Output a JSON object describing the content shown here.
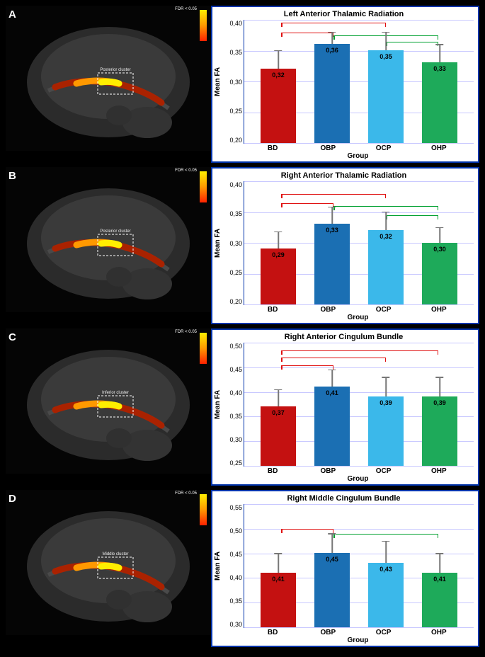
{
  "figure": {
    "panels": [
      {
        "label": "A",
        "chart": {
          "title": "Left Anterior Thalamic Radiation",
          "type": "bar",
          "ylabel": "Mean FA",
          "xlabel": "Group",
          "ylim": [
            0.2,
            0.4
          ],
          "yticks": [
            "0,40",
            "0,35",
            "0,30",
            "0,25",
            "0,20"
          ],
          "categories": [
            "BD",
            "OBP",
            "OCP",
            "OHP"
          ],
          "values": [
            0.32,
            0.36,
            0.35,
            0.33
          ],
          "value_labels": [
            "0,32",
            "0,36",
            "0,35",
            "0,33"
          ],
          "errors": [
            0.03,
            0.02,
            0.03,
            0.03
          ],
          "bar_colors": [
            "#c41111",
            "#1b6fb3",
            "#3bb8ea",
            "#1eaa5a"
          ],
          "background_color": "#ffffff",
          "grid_color": "#c8c8ff",
          "axis_color": "#0033aa",
          "brackets": [
            {
              "from": 0,
              "to": 1,
              "y": 0.38,
              "color": "red"
            },
            {
              "from": 0,
              "to": 2,
              "y": 0.395,
              "color": "red"
            },
            {
              "from": 1,
              "to": 3,
              "y": 0.375,
              "color": "grn"
            },
            {
              "from": 2,
              "to": 3,
              "y": 0.365,
              "color": "grn"
            }
          ]
        },
        "colorbar_label": "FDR < 0.05",
        "brain_region_label": "Posterior cluster"
      },
      {
        "label": "B",
        "chart": {
          "title": "Right Anterior Thalamic Radiation",
          "type": "bar",
          "ylabel": "Mean FA",
          "xlabel": "Group",
          "ylim": [
            0.2,
            0.4
          ],
          "yticks": [
            "0,40",
            "0,35",
            "0,30",
            "0,25",
            "0,20"
          ],
          "categories": [
            "BD",
            "OBP",
            "OCP",
            "OHP"
          ],
          "values": [
            0.29,
            0.33,
            0.32,
            0.3
          ],
          "value_labels": [
            "0,29",
            "0,33",
            "0,32",
            "0,30"
          ],
          "errors": [
            0.028,
            0.028,
            0.03,
            0.025
          ],
          "bar_colors": [
            "#c41111",
            "#1b6fb3",
            "#3bb8ea",
            "#1eaa5a"
          ],
          "background_color": "#ffffff",
          "grid_color": "#c8c8ff",
          "axis_color": "#0033aa",
          "brackets": [
            {
              "from": 0,
              "to": 1,
              "y": 0.365,
              "color": "red"
            },
            {
              "from": 0,
              "to": 2,
              "y": 0.38,
              "color": "red"
            },
            {
              "from": 1,
              "to": 3,
              "y": 0.36,
              "color": "grn"
            },
            {
              "from": 2,
              "to": 3,
              "y": 0.345,
              "color": "grn"
            }
          ]
        },
        "colorbar_label": "FDR < 0.05",
        "brain_region_label": "Posterior cluster"
      },
      {
        "label": "C",
        "chart": {
          "title": "Right Anterior Cingulum Bundle",
          "type": "bar",
          "ylabel": "Mean FA",
          "xlabel": "Group",
          "ylim": [
            0.25,
            0.5
          ],
          "yticks": [
            "0,50",
            "0,45",
            "0,40",
            "0,35",
            "0,30",
            "0,25"
          ],
          "categories": [
            "BD",
            "OBP",
            "OCP",
            "OHP"
          ],
          "values": [
            0.37,
            0.41,
            0.39,
            0.39
          ],
          "value_labels": [
            "0,37",
            "0,41",
            "0,39",
            "0,39"
          ],
          "errors": [
            0.035,
            0.035,
            0.04,
            0.04
          ],
          "bar_colors": [
            "#c41111",
            "#1b6fb3",
            "#3bb8ea",
            "#1eaa5a"
          ],
          "background_color": "#ffffff",
          "grid_color": "#c8c8ff",
          "axis_color": "#0033aa",
          "brackets": [
            {
              "from": 0,
              "to": 1,
              "y": 0.455,
              "color": "red"
            },
            {
              "from": 0,
              "to": 2,
              "y": 0.47,
              "color": "red"
            },
            {
              "from": 0,
              "to": 3,
              "y": 0.485,
              "color": "red"
            }
          ]
        },
        "colorbar_label": "FDR < 0.05",
        "brain_region_label": "Inferior cluster"
      },
      {
        "label": "D",
        "chart": {
          "title": "Right Middle Cingulum Bundle",
          "type": "bar",
          "ylabel": "Mean FA",
          "xlabel": "Group",
          "ylim": [
            0.3,
            0.55
          ],
          "yticks": [
            "0,55",
            "0,50",
            "0,45",
            "0,40",
            "0,35",
            "0,30"
          ],
          "categories": [
            "BD",
            "OBP",
            "OCP",
            "OHP"
          ],
          "values": [
            0.41,
            0.45,
            0.43,
            0.41
          ],
          "value_labels": [
            "0,41",
            "0,45",
            "0,43",
            "0,41"
          ],
          "errors": [
            0.04,
            0.04,
            0.045,
            0.04
          ],
          "bar_colors": [
            "#c41111",
            "#1b6fb3",
            "#3bb8ea",
            "#1eaa5a"
          ],
          "background_color": "#ffffff",
          "grid_color": "#c8c8ff",
          "axis_color": "#0033aa",
          "brackets": [
            {
              "from": 0,
              "to": 1,
              "y": 0.5,
              "color": "red"
            },
            {
              "from": 1,
              "to": 3,
              "y": 0.49,
              "color": "grn"
            }
          ]
        },
        "colorbar_label": "FDR < 0.05",
        "brain_region_label": "Middle cluster"
      }
    ]
  }
}
